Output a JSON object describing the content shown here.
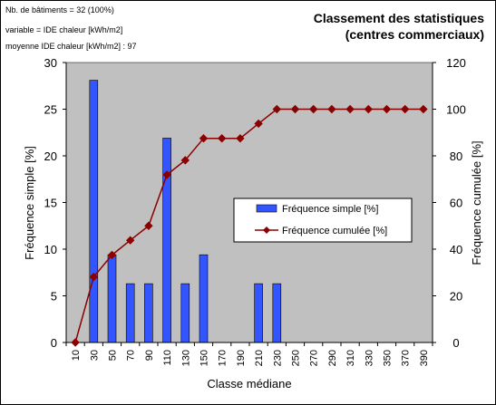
{
  "info": {
    "line1": "Nb. de bâtiments = 32 (100%)",
    "line2": "variable = IDE chaleur [kWh/m2]",
    "line3": "moyenne IDE chaleur [kWh/m2] : 97"
  },
  "title": {
    "line1": "Classement des statistiques",
    "line2": "(centres commerciaux)"
  },
  "chart_data": {
    "type": "bar",
    "title": "Classement des statistiques (centres commerciaux)",
    "categories": [
      "10",
      "30",
      "50",
      "70",
      "90",
      "110",
      "130",
      "150",
      "170",
      "190",
      "210",
      "230",
      "250",
      "270",
      "290",
      "310",
      "330",
      "350",
      "370",
      "390"
    ],
    "xlabel": "Classe médiane",
    "ylabel": "Fréquence simple [%]",
    "y2label": "Fréquence cumulée [%]",
    "ylim": [
      0,
      30
    ],
    "y2lim": [
      0,
      120
    ],
    "yticks": [
      0,
      5,
      10,
      15,
      20,
      25,
      30
    ],
    "y2ticks": [
      0,
      20,
      40,
      60,
      80,
      100,
      120
    ],
    "grid": false,
    "legend_position": "center-right",
    "series": [
      {
        "name": "Fréquence simple [%]",
        "type": "bar",
        "axis": "left",
        "color": "#3355ff",
        "values": [
          0,
          28.1,
          9.4,
          6.3,
          6.3,
          21.9,
          6.3,
          9.4,
          0,
          0,
          6.3,
          6.3,
          0,
          0,
          0,
          0,
          0,
          0,
          0,
          0
        ]
      },
      {
        "name": "Fréquence cumulée [%]",
        "type": "line",
        "axis": "right",
        "color": "#8b0000",
        "values": [
          0,
          28.1,
          37.5,
          43.8,
          50,
          71.9,
          78.1,
          87.5,
          87.5,
          87.5,
          93.8,
          100,
          100,
          100,
          100,
          100,
          100,
          100,
          100,
          100
        ]
      }
    ]
  }
}
